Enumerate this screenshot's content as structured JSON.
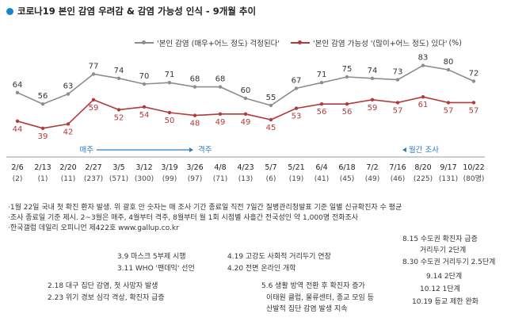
{
  "title": "코로나19 본인 감염 우려감 & 감염 가능성 인식 - 9개월 추이",
  "legend": {
    "series1": "'본인 감염 (매우+어느 정도) 걱정된다'",
    "series2": "'본인 감염 가능성 '(많이+어느 정도) 있다'",
    "unit": "(%)"
  },
  "period_labels": {
    "daily": "매주",
    "weekly": "격주",
    "monthly": "월간 조사"
  },
  "chart_data": {
    "type": "line",
    "categories": [
      "2/6",
      "2/13",
      "2/20",
      "2/27",
      "3/5",
      "3/12",
      "3/19",
      "3/26",
      "4/8",
      "4/23",
      "5/7",
      "5/21",
      "6/4",
      "6/18",
      "7/2",
      "7/16",
      "8/20",
      "9/17",
      "10/22"
    ],
    "sample_sizes": [
      "(2)",
      "(1)",
      "(11)",
      "(237)",
      "(571)",
      "(300)",
      "(99)",
      "(97)",
      "(71)",
      "(13)",
      "(6)",
      "(19)",
      "(41)",
      "(45)",
      "(49)",
      "(46)",
      "(225)",
      "(131)",
      "(80명)"
    ],
    "series": [
      {
        "name": "'본인 감염 (매우+어느 정도) 걱정된다'",
        "color": "#8d8d8d",
        "values": [
          64,
          56,
          63,
          77,
          74,
          70,
          71,
          68,
          68,
          60,
          55,
          67,
          71,
          75,
          74,
          73,
          83,
          80,
          72
        ]
      },
      {
        "name": "'본인 감염 가능성 '(많이+어느 정도) 있다'",
        "color": "#b23a3a",
        "values": [
          44,
          39,
          42,
          59,
          52,
          54,
          50,
          48,
          49,
          49,
          45,
          53,
          56,
          56,
          59,
          57,
          61,
          57,
          57
        ]
      }
    ],
    "ylim": [
      30,
      90
    ]
  },
  "notes": [
    "·1월 22일 국내 첫 확진 환자 발생. 위 괄호 안 숫자는 매 조사 기간 종료일 직전 7일간 질병관리청발표 기준 일별 신규확진자 수 평균",
    "·조사 종료일 기준 제시. 2~3월은 매주, 4월부터 격주, 8월부터 월 1회 시점별 사흘간 전국성인 약 1,000명 전화조사",
    "·한국갤럽 데일리 오피니언 제422호 www.gallup.co.kr"
  ],
  "events": [
    "8.15 수도권 확진자 급증",
    "거리두기 2단계",
    "3.9 마스크 5부제 시행",
    "4.19 고강도 사회적 거리두기 연장",
    "8.30 수도권 거리두기 2.5단계",
    "3.11 WHO '팬데믹' 선언",
    "4.20 전면 온라인 개학",
    "9.14 2단계",
    "2.18 대구 집단 감염, 첫 사망자 발생",
    "5.6 생활 방역 전환 후 확진자 증가",
    "10.12 1단계",
    "2.23 위기 경보 심각 격상, 확진자 급증",
    "이태원 클럽, 물류센터, 종교 모임 등",
    "산발적 집단 감염 발생 지속",
    "10.19 등교 제한 완화"
  ]
}
